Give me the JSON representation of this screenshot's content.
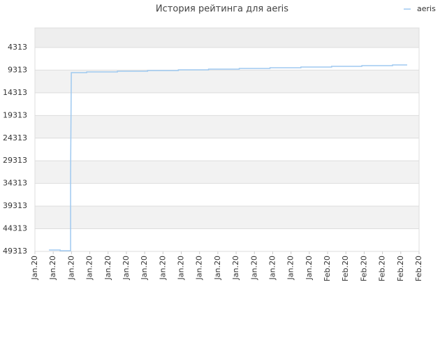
{
  "chart_data": {
    "type": "line",
    "title": "История рейтинга для aeris",
    "x": [
      0.77,
      1.38,
      1.38,
      1.95,
      1.95,
      1.99,
      2.83,
      2.83,
      4.51,
      4.51,
      6.16,
      6.16,
      7.84,
      7.84,
      9.49,
      9.49,
      11.17,
      11.17,
      12.85,
      12.85,
      14.54,
      14.54,
      16.22,
      16.22,
      17.87,
      17.87,
      19.55,
      19.55,
      20.35
    ],
    "series": [
      {
        "name": "aeris",
        "color": "#9fc9f0",
        "values": [
          49005,
          49005,
          49159,
          49159,
          32362,
          9863,
          9863,
          9708,
          9708,
          9554,
          9554,
          9400,
          9400,
          9246,
          9246,
          9092,
          9092,
          8938,
          8938,
          8783,
          8783,
          8629,
          8629,
          8475,
          8475,
          8321,
          8321,
          8167,
          8167
        ]
      }
    ],
    "xlim": [
      0,
      21
    ],
    "xticks": [
      {
        "value": 0,
        "label": "Jan.20"
      },
      {
        "value": 1,
        "label": "Jan.20"
      },
      {
        "value": 2,
        "label": "Jan.20"
      },
      {
        "value": 3,
        "label": "Jan.20"
      },
      {
        "value": 4,
        "label": "Jan.20"
      },
      {
        "value": 5,
        "label": "Jan.20"
      },
      {
        "value": 6,
        "label": "Jan.20"
      },
      {
        "value": 7,
        "label": "Jan.20"
      },
      {
        "value": 8,
        "label": "Jan.20"
      },
      {
        "value": 9,
        "label": "Jan.20"
      },
      {
        "value": 10,
        "label": "Jan.20"
      },
      {
        "value": 11,
        "label": "Jan.20"
      },
      {
        "value": 12,
        "label": "Jan.20"
      },
      {
        "value": 13,
        "label": "Jan.20"
      },
      {
        "value": 14,
        "label": "Jan.20"
      },
      {
        "value": 15,
        "label": "Jan.20"
      },
      {
        "value": 16,
        "label": "Feb.20"
      },
      {
        "value": 17,
        "label": "Feb.20"
      },
      {
        "value": 18,
        "label": "Feb.20"
      },
      {
        "value": 19,
        "label": "Feb.20"
      },
      {
        "value": 20,
        "label": "Feb.20"
      },
      {
        "value": 21,
        "label": "Feb.20"
      }
    ],
    "ylim": [
      49313,
      0
    ],
    "yticks": [
      4313,
      9313,
      14313,
      19313,
      24313,
      29313,
      34313,
      39313,
      44313,
      49313
    ],
    "legend": "top-right"
  }
}
